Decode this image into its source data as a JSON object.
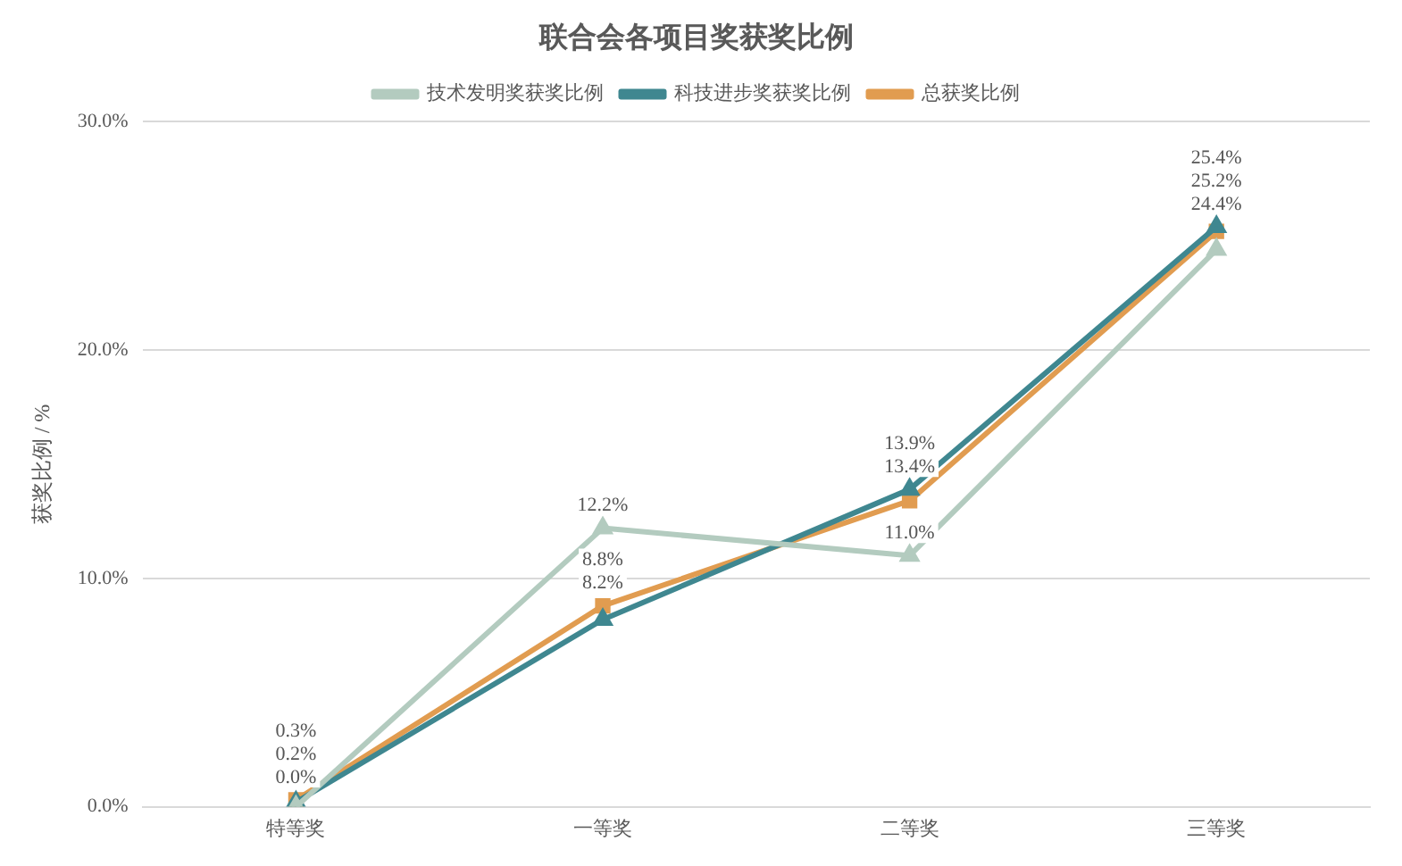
{
  "chart_data": {
    "type": "line",
    "title": "联合会各项目奖获奖比例",
    "ylabel": "获奖比例 / %",
    "categories": [
      "特等奖",
      "一等奖",
      "二等奖",
      "三等奖"
    ],
    "series": [
      {
        "name": "技术发明奖获奖比例",
        "color": "#b3cbbf",
        "marker": "triangle",
        "values": [
          0.0,
          12.2,
          11.0,
          24.4
        ],
        "value_labels": [
          "0.0%",
          "12.2%",
          "11.0%",
          "24.4%"
        ]
      },
      {
        "name": "科技进步奖获奖比例",
        "color": "#3f8790",
        "marker": "triangle",
        "values": [
          0.2,
          8.2,
          13.9,
          25.4
        ],
        "value_labels": [
          "0.2%",
          "8.2%",
          "13.9%",
          "25.4%"
        ]
      },
      {
        "name": "总获奖比例",
        "color": "#e19c50",
        "marker": "square",
        "values": [
          0.3,
          8.8,
          13.4,
          25.2
        ],
        "value_labels": [
          "0.3%",
          "8.8%",
          "13.4%",
          "25.2%"
        ]
      }
    ],
    "ylim": [
      0,
      30
    ],
    "yticks": [
      {
        "value": 0,
        "label": "0.0%"
      },
      {
        "value": 10,
        "label": "10.0%"
      },
      {
        "value": 20,
        "label": "20.0%"
      },
      {
        "value": 30,
        "label": "30.0%"
      }
    ],
    "grid": "y",
    "legend": "top",
    "line_style": "solid"
  }
}
